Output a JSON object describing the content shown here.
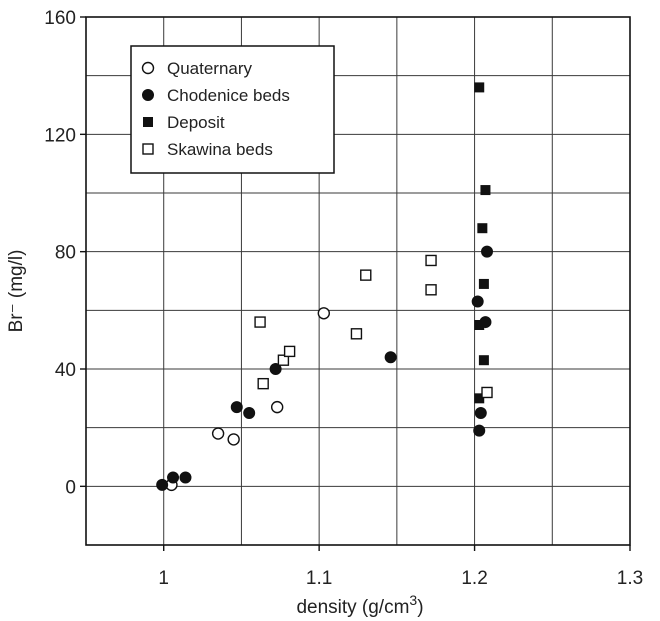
{
  "chart_data": {
    "type": "scatter",
    "xlabel": "density (g/cm",
    "xlabel_superscript": "3",
    "xlabel_close": ")",
    "ylabel": "Br⁻ (mg/l)",
    "xlim": [
      0.95,
      1.3
    ],
    "ylim": [
      -20,
      160
    ],
    "x_ticks": [
      1,
      1.1,
      1.2,
      1.3
    ],
    "x_tick_labels": [
      "1",
      "1.1",
      "1.2",
      "1.3"
    ],
    "y_ticks": [
      0,
      40,
      80,
      120,
      160
    ],
    "y_tick_labels": [
      "0",
      "40",
      "80",
      "120",
      "160"
    ],
    "x_gridlines": [
      0.95,
      1.0,
      1.05,
      1.1,
      1.15,
      1.2,
      1.25,
      1.3
    ],
    "y_gridlines": [
      -20,
      0,
      20,
      40,
      60,
      80,
      100,
      120,
      140,
      160
    ],
    "grid": true,
    "legend_position": "top-left",
    "series": [
      {
        "name": "Quaternary",
        "marker": "open-circle",
        "points": [
          [
            1.005,
            0.5
          ],
          [
            1.035,
            18
          ],
          [
            1.045,
            16
          ],
          [
            1.073,
            27
          ],
          [
            1.103,
            59
          ]
        ]
      },
      {
        "name": "Chodenice beds",
        "marker": "filled-circle",
        "points": [
          [
            0.999,
            0.5
          ],
          [
            1.006,
            3
          ],
          [
            1.014,
            3
          ],
          [
            1.047,
            27
          ],
          [
            1.055,
            25
          ],
          [
            1.072,
            40
          ],
          [
            1.146,
            44
          ],
          [
            1.202,
            63
          ],
          [
            1.203,
            19
          ],
          [
            1.204,
            25
          ],
          [
            1.207,
            56
          ],
          [
            1.208,
            80
          ]
        ]
      },
      {
        "name": "Deposit",
        "marker": "filled-square",
        "points": [
          [
            1.203,
            136
          ],
          [
            1.207,
            101
          ],
          [
            1.205,
            88
          ],
          [
            1.206,
            69
          ],
          [
            1.203,
            55
          ],
          [
            1.206,
            43
          ],
          [
            1.203,
            30
          ]
        ]
      },
      {
        "name": "Skawina beds",
        "marker": "open-square",
        "points": [
          [
            1.062,
            56
          ],
          [
            1.064,
            35
          ],
          [
            1.077,
            43
          ],
          [
            1.081,
            46
          ],
          [
            1.124,
            52
          ],
          [
            1.13,
            72
          ],
          [
            1.172,
            77
          ],
          [
            1.172,
            67
          ],
          [
            1.208,
            32
          ]
        ]
      }
    ]
  },
  "colors": {
    "ink": "#111111",
    "grid": "#3a3a3a",
    "background": "#ffffff"
  }
}
